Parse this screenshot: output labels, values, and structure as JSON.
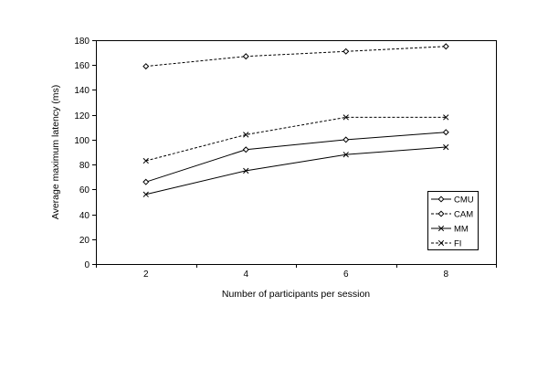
{
  "page": {
    "background": "#ffffff",
    "foreground": "#000000"
  },
  "chart_data": {
    "type": "line",
    "title": "",
    "xlabel": "Number of participants per session",
    "ylabel": "Average maximum latency (ms)",
    "categories": [
      "2",
      "4",
      "6",
      "8"
    ],
    "ylim": [
      0,
      180
    ],
    "ytick_step": 20,
    "ytick_labels": [
      "0",
      "20",
      "40",
      "60",
      "80",
      "100",
      "120",
      "140",
      "160",
      "180"
    ],
    "grid": false,
    "legend_position": "inside-bottom-right",
    "axis_color": "#000000",
    "series": [
      {
        "name": "CMU",
        "line": "solid",
        "marker": "diamond",
        "color": "#000000",
        "values": [
          66,
          92,
          100,
          106
        ]
      },
      {
        "name": "CAM",
        "line": "dashed",
        "marker": "diamond",
        "color": "#000000",
        "values": [
          159,
          167,
          171,
          175
        ]
      },
      {
        "name": "MM",
        "line": "solid",
        "marker": "x",
        "color": "#000000",
        "values": [
          56,
          75,
          88,
          94
        ]
      },
      {
        "name": "FI",
        "line": "dashed",
        "marker": "x",
        "color": "#000000",
        "values": [
          83,
          104,
          118,
          118
        ]
      }
    ]
  }
}
